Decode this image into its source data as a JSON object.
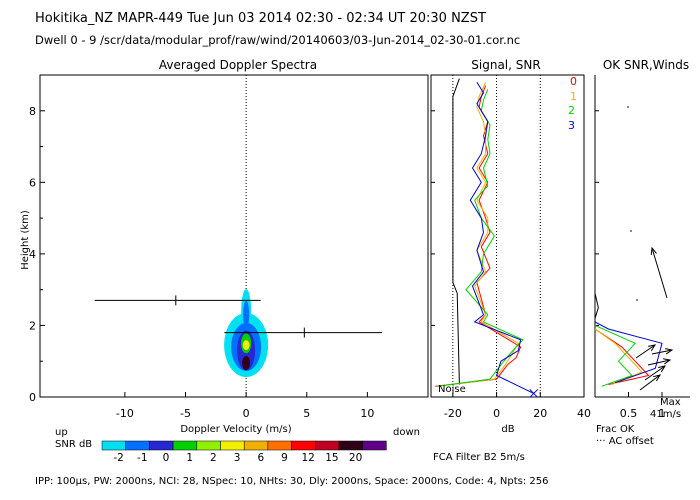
{
  "header": {
    "line1": "Hokitika_NZ   MAPR-449   Tue Jun 03 2014 02:30 - 02:34 UT 20:30 NZST",
    "line2": "Dwell  0 -  9   /scr/data/modular_prof/raw/wind/20140603/03-Jun-2014_02-30-01.cor.nc"
  },
  "footer": {
    "params": "IPP: 100μs,  PW: 2000ns,  NCI: 28,  NSpec: 10, NHts: 30,  Dly: 2000ns,  Space: 2000ns,  Code: 4,  Npts: 256",
    "fca": "FCA Filter B2   5m/s"
  },
  "colors": {
    "scale": [
      "#00e0f0",
      "#0070ff",
      "#2828d0",
      "#00d000",
      "#90f000",
      "#f0f000",
      "#f0b000",
      "#ff7000",
      "#ff0000",
      "#c00020",
      "#300018",
      "#600088"
    ],
    "beam0": "#ff0000",
    "beam1": "#f0b000",
    "beam2": "#00d000",
    "beam3": "#0000d0",
    "noise": "#000000"
  },
  "snr_scale": {
    "label_up": "up",
    "label_snr": "SNR dB",
    "label_down": "down",
    "ticks": [
      "-2",
      "-1",
      "0",
      "1",
      "2",
      "3",
      "6",
      "9",
      "12",
      "15",
      "20"
    ]
  },
  "chart_data": [
    {
      "type": "heatmap",
      "title": "Averaged Doppler Spectra",
      "xlabel": "Doppler Velocity (m/s)",
      "ylabel": "Height (km)",
      "xlim": [
        -17,
        15
      ],
      "ylim": [
        0,
        9
      ],
      "xticks": [
        -10,
        -5,
        0,
        5,
        10
      ],
      "yticks": [
        0,
        2,
        4,
        6,
        8
      ],
      "vertical_velocity_markers": [
        {
          "height": 2.7,
          "center": -5.8,
          "min": -12.5,
          "max": 1.2
        },
        {
          "height": 1.8,
          "center": 4.8,
          "min": -1.8,
          "max": 11.2
        }
      ]
    },
    {
      "type": "line",
      "title": "Signal, SNR",
      "xlabel": "dB",
      "xlim": [
        -30,
        40
      ],
      "ylim": [
        0,
        9
      ],
      "xticks": [
        -20,
        0,
        20,
        40
      ],
      "noise_label": "Noise",
      "series": [
        {
          "name": "Noise",
          "x": [
            -17,
            -18,
            -20,
            -20,
            -20,
            -20,
            -20,
            -20,
            -20,
            -20,
            -20,
            -20,
            -17
          ],
          "y": [
            0.35,
            2.9,
            3.2,
            4.5,
            5.0,
            5.6,
            6.2,
            6.8,
            7.2,
            7.6,
            8.0,
            8.4,
            8.9
          ]
        },
        {
          "name": "0",
          "x": [
            -28,
            0,
            5,
            9,
            11,
            -8,
            -5,
            -9,
            -3,
            -7,
            -3,
            -5,
            -8,
            -4,
            -8,
            -4,
            -6,
            -4,
            -8,
            -7,
            -5
          ],
          "y": [
            0.3,
            0.5,
            0.9,
            1.1,
            1.4,
            2.1,
            2.3,
            3.2,
            3.6,
            4.2,
            4.6,
            5.0,
            5.5,
            6.0,
            6.4,
            6.8,
            7.3,
            7.7,
            8.1,
            8.4,
            8.7
          ]
        },
        {
          "name": "1",
          "x": [
            -27,
            -1,
            4,
            7,
            10,
            -7,
            -5,
            -10,
            -5,
            -9,
            -4,
            -4,
            -9,
            -5,
            -9,
            -5,
            -5,
            -6,
            -9,
            -8,
            -5
          ],
          "y": [
            0.3,
            0.5,
            0.9,
            1.2,
            1.5,
            2.1,
            2.3,
            3.1,
            3.5,
            4.1,
            4.6,
            5.0,
            5.5,
            6.0,
            6.4,
            6.8,
            7.3,
            7.7,
            8.1,
            8.4,
            8.8
          ]
        },
        {
          "name": "2",
          "x": [
            -27,
            -3,
            2,
            6,
            12,
            -6,
            -4,
            -14,
            -7,
            -6,
            -1,
            -7,
            -10,
            -4,
            -6,
            -3,
            -4,
            -3,
            -7,
            -6,
            -4
          ],
          "y": [
            0.3,
            0.5,
            0.9,
            1.2,
            1.6,
            2.1,
            2.3,
            3.0,
            3.5,
            4.0,
            4.5,
            5.0,
            5.5,
            5.9,
            6.4,
            6.8,
            7.2,
            7.6,
            8.0,
            8.3,
            8.6
          ]
        },
        {
          "name": "3",
          "x": [
            17,
            0,
            2,
            10,
            11,
            -10,
            -6,
            -11,
            -6,
            -9,
            -6,
            -7,
            -12,
            -7,
            -11,
            -7,
            -5,
            -4,
            -9,
            -6,
            -9
          ],
          "y": [
            0.1,
            0.6,
            1.0,
            1.3,
            1.6,
            2.1,
            2.3,
            3.1,
            3.5,
            4.1,
            4.6,
            5.0,
            5.5,
            6.0,
            6.4,
            6.8,
            7.3,
            7.7,
            8.2,
            8.5,
            8.8
          ]
        }
      ]
    },
    {
      "type": "line",
      "title": "OK SNR,Winds",
      "xlabel": "Frac OK",
      "xlim": [
        0,
        1
      ],
      "ylim": [
        0,
        9
      ],
      "xticks": [
        0.5,
        1
      ],
      "xtick_labels": [
        "0.5",
        "1"
      ],
      "legend": [
        "0",
        "1",
        "2",
        "3"
      ],
      "max_wind_label": "Max",
      "max_wind_value": "41m/s",
      "ac_offset_label": "AC offset"
    }
  ]
}
